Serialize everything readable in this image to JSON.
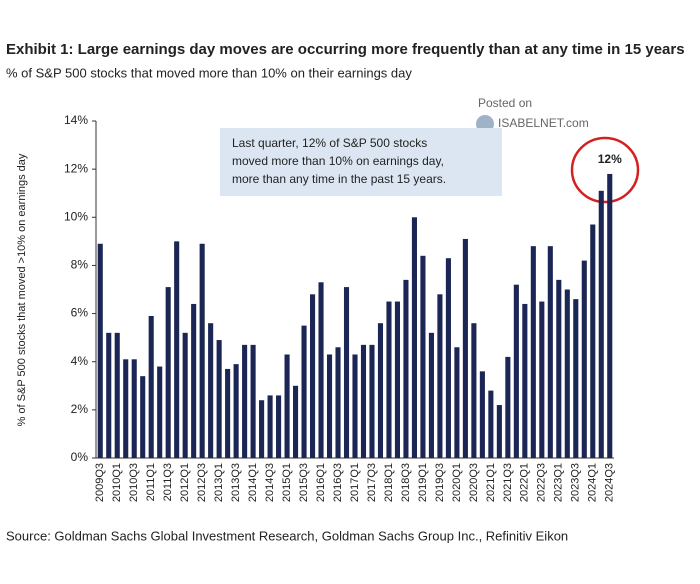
{
  "chart_data": {
    "type": "bar",
    "title": "Exhibit 1: Large earnings day moves are occurring more frequently than at any time in 15 years",
    "subtitle": "% of S&P 500 stocks that moved more than 10% on their earnings day",
    "y_label": "% of S&P 500 stocks that moved >10% on earnings day",
    "annotation": [
      "Last quarter,  12% of S&P 500 stocks",
      "moved  more than 10% on earnings day,",
      "more than any time in the past 15 years."
    ],
    "watermark": {
      "posted": "Posted on",
      "site": "ISABELNET.com"
    },
    "source": "Source: Goldman Sachs Global Investment Research, Goldman Sachs Group Inc., Refinitiv Eikon",
    "categories": [
      "2009Q3",
      null,
      "2010Q1",
      null,
      "2010Q3",
      null,
      "2011Q1",
      null,
      "2011Q3",
      null,
      "2012Q1",
      null,
      "2012Q3",
      null,
      "2013Q1",
      null,
      "2013Q3",
      null,
      "2014Q1",
      null,
      "2014Q3",
      null,
      "2015Q1",
      null,
      "2015Q3",
      null,
      "2016Q1",
      null,
      "2016Q3",
      null,
      "2017Q1",
      null,
      "2017Q3",
      null,
      "2018Q1",
      null,
      "2018Q3",
      null,
      "2019Q1",
      null,
      "2019Q3",
      null,
      "2020Q1",
      null,
      "2020Q3",
      null,
      "2021Q1",
      null,
      "2021Q3",
      null,
      "2022Q1",
      null,
      "2022Q3",
      null,
      "2023Q1",
      null,
      "2023Q3",
      null,
      "2024Q1",
      null,
      "2024Q3"
    ],
    "values": [
      8.9,
      5.2,
      5.2,
      4.1,
      4.1,
      3.4,
      5.9,
      3.8,
      7.1,
      9.0,
      5.2,
      6.4,
      8.9,
      5.6,
      4.9,
      3.7,
      3.9,
      4.7,
      4.7,
      2.4,
      2.6,
      2.6,
      4.3,
      3.0,
      5.5,
      6.8,
      7.3,
      4.3,
      4.6,
      7.1,
      4.3,
      4.7,
      4.7,
      5.6,
      6.5,
      6.5,
      7.4,
      10.0,
      8.4,
      5.2,
      6.8,
      8.3,
      4.6,
      9.1,
      5.6,
      3.6,
      2.8,
      2.2,
      4.2,
      7.2,
      6.4,
      8.8,
      6.5,
      8.8,
      7.4,
      7.0,
      6.6,
      8.2,
      9.7,
      11.1,
      11.8
    ],
    "value_labels": [
      null,
      null,
      null,
      null,
      null,
      null,
      null,
      null,
      null,
      null,
      null,
      null,
      null,
      null,
      null,
      null,
      null,
      null,
      null,
      null,
      null,
      null,
      null,
      null,
      null,
      null,
      null,
      null,
      null,
      null,
      null,
      null,
      null,
      null,
      null,
      null,
      null,
      null,
      null,
      null,
      null,
      null,
      null,
      null,
      null,
      null,
      null,
      null,
      null,
      null,
      null,
      null,
      null,
      null,
      null,
      null,
      null,
      null,
      null,
      null,
      "12%"
    ],
    "color": "#1c2654",
    "ylim": [
      0,
      14
    ],
    "yticks": [
      {
        "value": 0,
        "label": "0%"
      },
      {
        "value": 2,
        "label": "2%"
      },
      {
        "value": 4,
        "label": "4%"
      },
      {
        "value": 6,
        "label": "6%"
      },
      {
        "value": 8,
        "label": "8%"
      },
      {
        "value": 10,
        "label": "10%"
      },
      {
        "value": 12,
        "label": "12%"
      },
      {
        "value": 14,
        "label": "14%"
      }
    ],
    "grid": false
  }
}
